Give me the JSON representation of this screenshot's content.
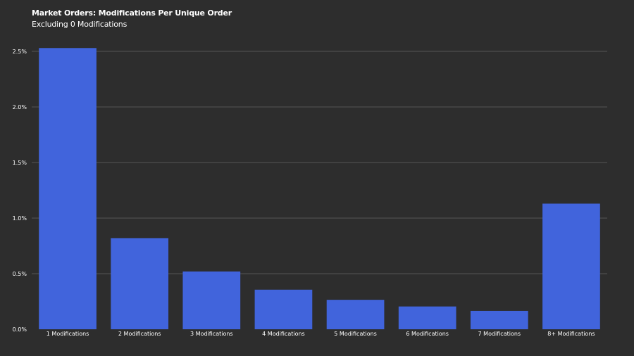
{
  "chart_data": {
    "type": "bar",
    "title": "Market Orders: Modifications Per Unique Order",
    "subtitle": "Excluding 0 Modifications",
    "xlabel": "",
    "ylabel": "",
    "categories": [
      "1 Modifications",
      "2 Modifications",
      "3 Modifications",
      "4 Modifications",
      "5 Modifications",
      "6 Modifications",
      "7 Modifications",
      "8+ Modifications"
    ],
    "values": [
      2.53,
      0.82,
      0.52,
      0.356,
      0.265,
      0.205,
      0.165,
      1.13
    ],
    "value_unit": "%",
    "ylim": [
      0,
      2.5
    ],
    "yticks": [
      0,
      0.5,
      1.0,
      1.5,
      2.0,
      2.5
    ],
    "ytick_labels": [
      "0.0%",
      "0.5%",
      "1.0%",
      "1.5%",
      "2.0%",
      "2.5%"
    ],
    "grid": true,
    "legend": "none",
    "colors": {
      "bar": "#4164dc",
      "background": "#2d2d2d",
      "grid": "#555555",
      "text": "#ffffff"
    }
  }
}
